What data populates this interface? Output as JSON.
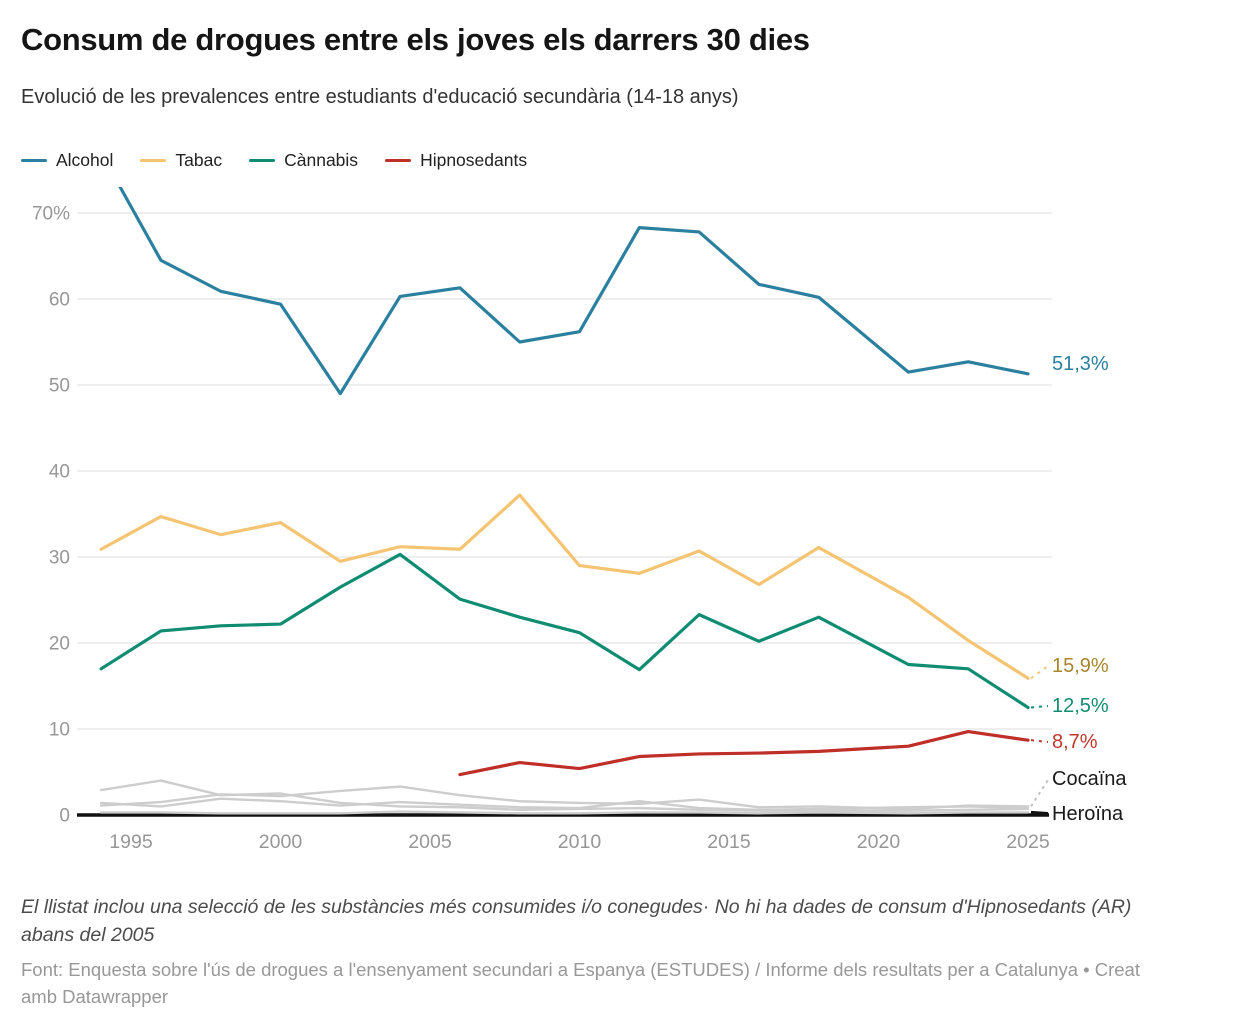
{
  "header": {
    "title": "Consum de drogues entre els joves els darrers 30 dies",
    "subtitle": "Evolució de les prevalences entre estudiants d'educació secundària (14-18 anys)"
  },
  "legend": [
    {
      "label": "Alcohol",
      "color": "#2b809f"
    },
    {
      "label": "Tabac",
      "color": "#f5c472"
    },
    {
      "label": "Cànnabis",
      "color": "#0f8c72"
    },
    {
      "label": "Hipnosedants",
      "color": "#bf2f28"
    }
  ],
  "chart_data": {
    "type": "line",
    "unit": "%",
    "x": [
      1994,
      1996,
      1998,
      2000,
      2002,
      2004,
      2006,
      2008,
      2010,
      2012,
      2014,
      2016,
      2018,
      2021,
      2023,
      2025
    ],
    "x_ticks": [
      "1995",
      "2000",
      "2005",
      "2010",
      "2015",
      "2020",
      "2025"
    ],
    "x_tick_years": [
      1995,
      2000,
      2005,
      2010,
      2015,
      2020,
      2025
    ],
    "y_ticks": [
      "70%",
      "60",
      "50",
      "40",
      "30",
      "20",
      "10",
      "0"
    ],
    "y_tick_values": [
      70,
      60,
      50,
      40,
      30,
      20,
      10,
      0
    ],
    "ylim": [
      0,
      73
    ],
    "grid": "horizontal",
    "legend_position": "top",
    "series": [
      {
        "name": "Alcohol",
        "color": "#2b809f",
        "values": [
          77.0,
          64.5,
          60.9,
          59.4,
          49.0,
          60.3,
          61.3,
          55.0,
          56.2,
          68.3,
          67.8,
          61.7,
          60.2,
          51.5,
          52.7,
          51.3
        ]
      },
      {
        "name": "Tabac",
        "color": "#f5c472",
        "values": [
          30.9,
          34.7,
          32.6,
          34.0,
          29.5,
          31.2,
          30.9,
          37.2,
          29.0,
          28.1,
          30.7,
          26.8,
          31.1,
          25.3,
          20.3,
          15.9
        ]
      },
      {
        "name": "Cànnabis",
        "color": "#0f8c72",
        "values": [
          17.0,
          21.4,
          22.0,
          22.2,
          26.5,
          30.3,
          25.1,
          23.0,
          21.2,
          16.9,
          23.3,
          20.2,
          23.0,
          17.5,
          17.0,
          12.5
        ]
      },
      {
        "name": "Hipnosedants",
        "color": "#bf2f28",
        "values": [
          null,
          null,
          null,
          null,
          null,
          null,
          4.7,
          6.1,
          5.4,
          6.8,
          7.1,
          7.2,
          7.4,
          8.0,
          9.7,
          8.7
        ]
      },
      {
        "name": "Cocaïna",
        "color": "#cdcdcd",
        "values": [
          1.1,
          1.5,
          2.4,
          2.2,
          2.8,
          3.3,
          2.3,
          1.6,
          1.4,
          1.3,
          1.8,
          0.9,
          1.0,
          0.7,
          1.1,
          1.0
        ]
      },
      {
        "name": "unlabeled-gray-1",
        "color": "#cdcdcd",
        "values": [
          2.9,
          4.0,
          2.3,
          2.5,
          1.4,
          1.0,
          0.9,
          0.6,
          0.7,
          0.8,
          0.6,
          0.5,
          0.5,
          0.5,
          0.6,
          0.7
        ]
      },
      {
        "name": "unlabeled-gray-2",
        "color": "#cdcdcd",
        "values": [
          1.4,
          1.0,
          1.9,
          1.6,
          1.1,
          1.5,
          1.2,
          0.9,
          0.8,
          1.6,
          0.8,
          0.6,
          0.7,
          0.9,
          1.0,
          0.8
        ]
      },
      {
        "name": "Heroïna",
        "color": "#cdcdcd",
        "values": [
          0.3,
          0.3,
          0.2,
          0.2,
          0.2,
          0.4,
          0.3,
          0.2,
          0.2,
          0.3,
          0.3,
          0.2,
          0.3,
          0.2,
          0.3,
          0.3
        ]
      }
    ],
    "end_labels": [
      {
        "text": "51,3%",
        "color": "#2b809f",
        "series": "Alcohol"
      },
      {
        "text": "15,9%",
        "color": "#a8862c",
        "series": "Tabac"
      },
      {
        "text": "12,5%",
        "color": "#0f8c72",
        "series": "Cànnabis"
      },
      {
        "text": "8,7%",
        "color": "#c0372e",
        "series": "Hipnosedants"
      },
      {
        "text": "Cocaïna",
        "color": "#1a1a1a",
        "series": "Cocaïna"
      },
      {
        "text": "Heroïna",
        "color": "#1a1a1a",
        "series": "Heroïna"
      }
    ]
  },
  "footer": {
    "note": "El llistat inclou una selecció de les substàncies més consumides i/o conegudes· No hi ha dades de consum d'Hipnosedants (AR) abans del 2005",
    "source": "Font: Enquesta sobre l'ús de drogues a l'ensenyament secundari a Espanya (ESTUDES) / Informe dels resultats per a Catalunya • Creat amb Datawrapper"
  }
}
